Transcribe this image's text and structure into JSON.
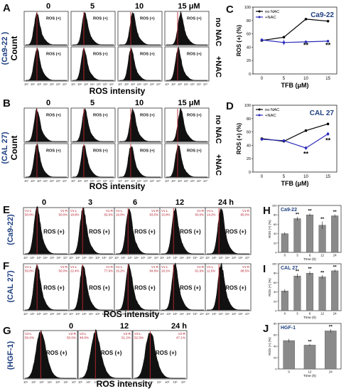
{
  "panel_letters": [
    "A",
    "B",
    "C",
    "D",
    "E",
    "F",
    "G",
    "H",
    "I",
    "J"
  ],
  "common": {
    "ros_intensity": "ROS intensity",
    "count": "Count",
    "ros_pos": "ROS (+)",
    "no_nac": "no NAC",
    "plus_nac": "+NAC",
    "sig": "**"
  },
  "cell_lines": {
    "ca922": "(Ca9-22 )",
    "ca922_b": "(Ca9-22)",
    "cal27": "(CAL 27)",
    "hgf1": "(HGF-1)"
  },
  "histogram_ticks": [
    "10¹",
    "10²",
    "10³",
    "10⁴",
    "10⁵",
    "10⁶",
    "10⁷"
  ],
  "panel_A": {
    "doses": [
      "0",
      "5",
      "10",
      "15  μM"
    ]
  },
  "panel_B": {
    "doses": [
      "0",
      "5",
      "10",
      "15  μM"
    ]
  },
  "panel_E": {
    "times": [
      "0",
      "3",
      "6",
      "12",
      "24 h"
    ],
    "gates": [
      {
        "l": "V1-L",
        "r": "V1-R",
        "lp": "50.0%",
        "rp": "50.0%"
      },
      {
        "l": "V1-L",
        "r": "V1-R",
        "lp": "18.8%",
        "rp": "82.6%"
      },
      {
        "l": "V1-L",
        "r": "V1-R",
        "lp": "16.0%",
        "rp": "83.5%"
      },
      {
        "l": "V1-L",
        "r": "V1-R",
        "lp": "15.8%",
        "rp": "83.0%"
      },
      {
        "l": "V1-L",
        "r": "V1-R",
        "lp": "14.2%",
        "rp": "85.0%"
      }
    ]
  },
  "panel_F": {
    "gates": [
      {
        "l": "V1-L",
        "r": "V1-R",
        "lp": "50.0%",
        "rp": "50.0%"
      },
      {
        "l": "V1-L",
        "r": "V1-R",
        "lp": "22.4%",
        "rp": "77.6%"
      },
      {
        "l": "V1-L",
        "r": "V1-R",
        "lp": "15.2%",
        "rp": "84.8%"
      },
      {
        "l": "V1-L",
        "r": "V1-R",
        "lp": "18.1%",
        "rp": "81.9%"
      },
      {
        "l": "V1-L",
        "r": "V1-R",
        "lp": "11.5%",
        "rp": "88.5%"
      }
    ]
  },
  "panel_G": {
    "times": [
      "0",
      "12",
      "24 h"
    ],
    "gates": [
      {
        "l": "V2-L",
        "r": "V2-R",
        "lp": "50.0%",
        "rp": "50.0%"
      },
      {
        "l": "V2-L",
        "r": "V2-R",
        "lp": "48.8%",
        "rp": "51.2%"
      },
      {
        "l": "V2-L",
        "r": "V2-R",
        "lp": "52.9%",
        "rp": "47.1%"
      }
    ]
  },
  "chart_data": [
    {
      "panel": "C",
      "type": "line",
      "title": "Ca9-22",
      "xlabel": "TFB (μM)",
      "ylabel": "ROS (+) (%)",
      "x": [
        0,
        5,
        10,
        15
      ],
      "xticks": [
        "0",
        "5",
        "10",
        "15"
      ],
      "ylim": [
        0,
        100
      ],
      "yticks": [
        0,
        20,
        40,
        60,
        80,
        100
      ],
      "series": [
        {
          "name": "no NAC",
          "color": "#000000",
          "values": [
            50,
            55,
            82,
            79
          ]
        },
        {
          "name": "+NAC",
          "color": "#2b2bb8",
          "values": [
            51,
            47,
            48,
            49
          ],
          "err": [
            2,
            4,
            2,
            2
          ]
        }
      ],
      "annotations": [
        {
          "x": 10,
          "y": 40,
          "text": "**"
        },
        {
          "x": 15,
          "y": 40,
          "text": "**"
        }
      ]
    },
    {
      "panel": "D",
      "type": "line",
      "title": "CAL 27",
      "xlabel": "TFB (μM)",
      "ylabel": "ROS (+) (%)",
      "x": [
        0,
        5,
        10,
        15
      ],
      "xticks": [
        "0",
        "5",
        "10",
        "15"
      ],
      "ylim": [
        0,
        100
      ],
      "yticks": [
        0,
        20,
        40,
        60,
        80,
        100
      ],
      "series": [
        {
          "name": "no NAC",
          "color": "#000000",
          "values": [
            50,
            46,
            62,
            72
          ]
        },
        {
          "name": "+NAC",
          "color": "#2b2bb8",
          "values": [
            49,
            47,
            36,
            57
          ],
          "err": [
            2,
            2,
            3,
            3
          ]
        }
      ],
      "annotations": [
        {
          "x": 10,
          "y": 24,
          "text": "**"
        },
        {
          "x": 15,
          "y": 44,
          "text": "**"
        }
      ]
    },
    {
      "panel": "H",
      "type": "bar",
      "title": "Ca9-22",
      "xlabel": "Time (h)",
      "ylabel": "ROS (+) (%)",
      "categories": [
        "0",
        "3",
        "6",
        "12",
        "24"
      ],
      "values": [
        40,
        72,
        80,
        58,
        78
      ],
      "err": [
        3,
        4,
        3,
        8,
        3
      ],
      "ylim": [
        0,
        100
      ],
      "yticks": [
        0,
        20,
        40,
        60,
        80,
        100
      ],
      "labels": [
        "",
        "**",
        "**",
        "**",
        "**"
      ]
    },
    {
      "panel": "I",
      "type": "bar",
      "title": "CAL 27",
      "xlabel": "Time (h)",
      "ylabel": "ROS (+) (%)",
      "categories": [
        "0",
        "3",
        "6",
        "12",
        "24"
      ],
      "values": [
        42,
        74,
        80,
        72,
        85
      ],
      "err": [
        4,
        5,
        4,
        4,
        3
      ],
      "ylim": [
        0,
        100
      ],
      "yticks": [
        0,
        20,
        40,
        60,
        80,
        100
      ],
      "labels": [
        "",
        "**",
        "**",
        "**",
        "**"
      ]
    },
    {
      "panel": "J",
      "type": "bar",
      "title": "HGF-1",
      "xlabel": "Time (h)",
      "ylabel": "ROS (+) (%)",
      "categories": [
        "0",
        "12",
        "24"
      ],
      "values": [
        50,
        42,
        67
      ],
      "err": [
        3,
        2,
        3
      ],
      "ylim": [
        0,
        80
      ],
      "yticks": [
        0,
        20,
        40,
        60,
        80
      ],
      "labels": [
        "",
        "**",
        "**"
      ]
    }
  ]
}
